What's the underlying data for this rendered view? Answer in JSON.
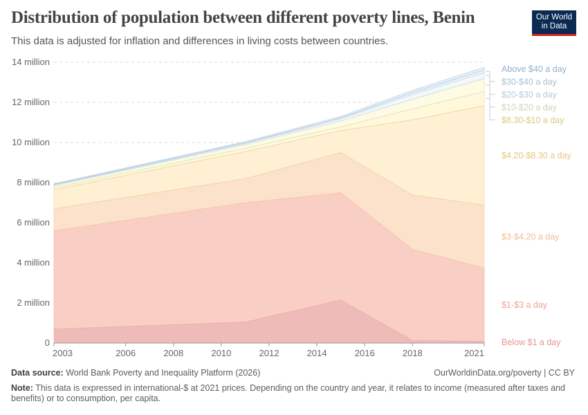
{
  "header": {
    "title": "Distribution of population between different poverty lines, Benin",
    "subtitle": "This data is adjusted for inflation and differences in living costs between countries."
  },
  "logo": {
    "line1": "Our World",
    "line2": "in Data",
    "bg_color": "#0b2a53",
    "accent_color": "#ce261e"
  },
  "footer": {
    "source_label": "Data source:",
    "source_text": "World Bank Poverty and Inequality Platform (2026)",
    "license": "OurWorldinData.org/poverty | CC BY",
    "note_label": "Note:",
    "note_text": "This data is expressed in international-$ at 2021 prices. Depending on the country and year, it relates to income (measured after taxes and benefits) or to consumption, per capita."
  },
  "chart_data": {
    "type": "area",
    "stacked": true,
    "title": "Distribution of population between different poverty lines, Benin",
    "x": [
      2003,
      2011,
      2015,
      2018,
      2021
    ],
    "xlim": [
      2003,
      2021
    ],
    "x_ticks": [
      "2003",
      "2006",
      "2008",
      "2010",
      "2012",
      "2014",
      "2016",
      "2018",
      "2021"
    ],
    "ylim": [
      0,
      14000000
    ],
    "y_ticks": [
      "0",
      "2 million",
      "4 million",
      "6 million",
      "8 million",
      "10 million",
      "12 million",
      "14 million"
    ],
    "grid": "horizontal dashed",
    "legend": "right, labels aligned to series",
    "series": [
      {
        "name": "Below $1 a day",
        "values": [
          700000,
          1050000,
          2150000,
          130000,
          90000
        ],
        "color": "#efbbb9",
        "label_color": "#e8958f"
      },
      {
        "name": "$1-$3 a day",
        "values": [
          4900000,
          5950000,
          5350000,
          4550000,
          3650000
        ],
        "color": "#f9cfc5",
        "label_color": "#eda493"
      },
      {
        "name": "$3-$4.20 a day",
        "values": [
          1100000,
          1200000,
          2000000,
          2700000,
          3150000
        ],
        "color": "#fde2cb",
        "label_color": "#efbf93"
      },
      {
        "name": "$4.20-$8.30 a day",
        "values": [
          950000,
          1350000,
          1100000,
          3750000,
          4950000
        ],
        "color": "#fff0d4",
        "label_color": "#e9c57f"
      },
      {
        "name": "$8.30-$10 a day",
        "values": [
          100000,
          160000,
          180000,
          550000,
          700000
        ],
        "color": "#fff8db",
        "label_color": "#d8c985"
      },
      {
        "name": "$10-$20 a day",
        "values": [
          100000,
          180000,
          290000,
          480000,
          650000
        ],
        "color": "#fdfbe3",
        "label_color": "#cfd4b9"
      },
      {
        "name": "$20-$30 a day",
        "values": [
          35000,
          60000,
          110000,
          230000,
          290000
        ],
        "color": "#f3f8fa",
        "label_color": "#b7cbd9"
      },
      {
        "name": "$30-$40 a day",
        "values": [
          25000,
          35000,
          50000,
          100000,
          130000
        ],
        "color": "#eef5fb",
        "label_color": "#a8c1d6"
      },
      {
        "name": "Above $40 a day",
        "values": [
          40000,
          55000,
          70000,
          110000,
          140000
        ],
        "color": "#e8f1fa",
        "label_color": "#8fb1d0"
      }
    ]
  }
}
